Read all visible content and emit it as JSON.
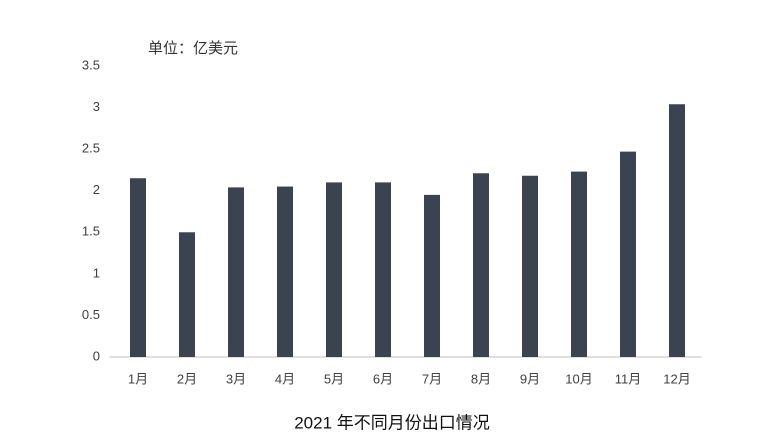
{
  "chart_data": {
    "type": "bar",
    "title": "2021 年不同月份出口情况",
    "unit_label": "单位：亿美元",
    "categories": [
      "1月",
      "2月",
      "3月",
      "4月",
      "5月",
      "6月",
      "7月",
      "8月",
      "9月",
      "10月",
      "11月",
      "12月"
    ],
    "values": [
      2.15,
      1.5,
      2.04,
      2.05,
      2.1,
      2.1,
      1.95,
      2.21,
      2.18,
      2.23,
      2.47,
      3.04
    ],
    "color": "#3b4250",
    "ylim": [
      0,
      3.5
    ],
    "yticks": [
      0,
      0.5,
      1,
      1.5,
      2,
      2.5,
      3,
      3.5
    ],
    "grid": false
  }
}
